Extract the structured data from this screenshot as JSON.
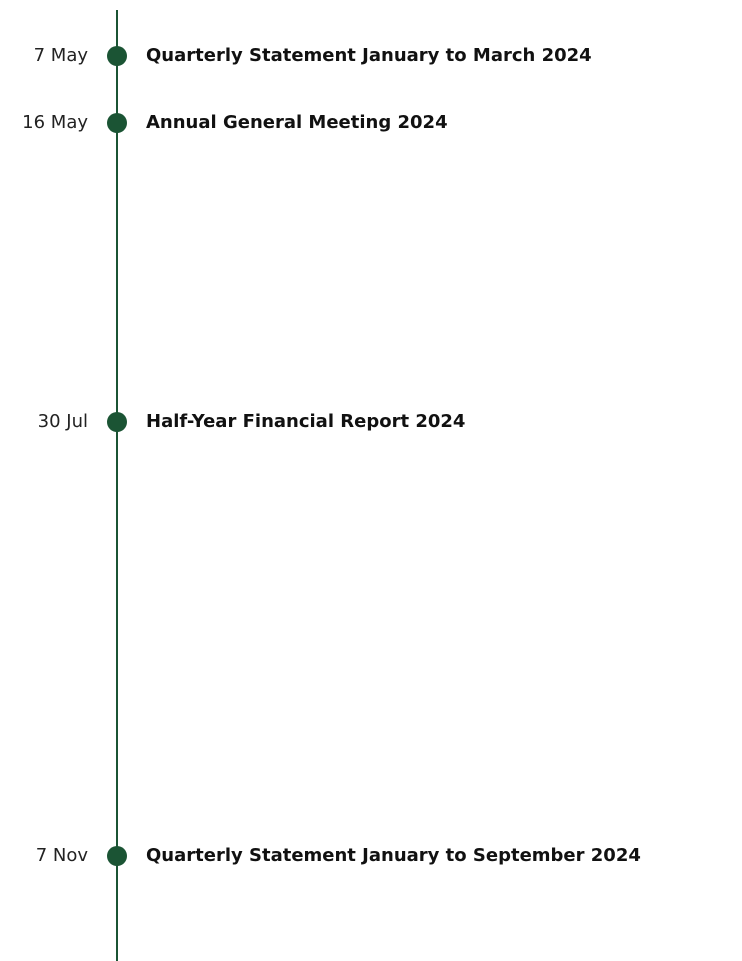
{
  "events": [
    {
      "date": "7 May",
      "title": "Quarterly Statement January to March 2024"
    },
    {
      "date": "16 May",
      "title": "Annual General Meeting 2024"
    },
    {
      "date": "30 Jul",
      "title": "Half-Year Financial Report 2024"
    },
    {
      "date": "7 Nov",
      "title": "Quarterly Statement January to September 2024"
    }
  ],
  "colors": {
    "accent": "#1b5434",
    "title_text": "#111111",
    "date_text": "#222222"
  }
}
